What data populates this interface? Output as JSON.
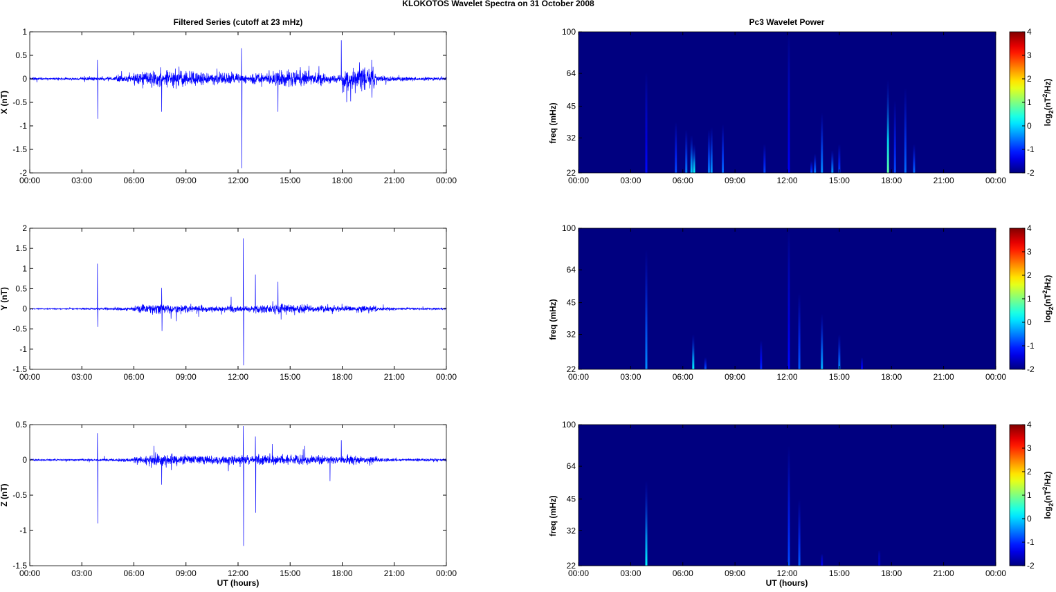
{
  "chart_data": {
    "type": "line",
    "title": "KLOKOTOS Wavelet Spectra on 31 October   2008",
    "left_title": "Filtered Series (cutoff at 23 mHz)",
    "right_title": "Pc3 Wavelet Power",
    "xlabel": "UT (hours)",
    "x_ticks": [
      "00:00",
      "03:00",
      "06:00",
      "09:00",
      "12:00",
      "15:00",
      "18:00",
      "21:00",
      "00:00"
    ],
    "xlim": [
      0,
      24
    ],
    "series_color": "#0000ff",
    "series": [
      {
        "name": "X",
        "ylabel": "X (nT)",
        "ylim": [
          -2,
          1
        ],
        "y_ticks": [
          "1",
          "0.5",
          "0",
          "-0.5",
          "-1",
          "-1.5",
          "-2"
        ],
        "activity": [
          0.02,
          0.02,
          0.02,
          0.03,
          0.03,
          0.06,
          0.14,
          0.15,
          0.13,
          0.12,
          0.1,
          0.09,
          0.09,
          0.1,
          0.14,
          0.14,
          0.1,
          0.08,
          0.18,
          0.17,
          0.05,
          0.04,
          0.03,
          0.03
        ],
        "spikes": [
          [
            3.9,
            0.4
          ],
          [
            3.92,
            -0.85
          ],
          [
            7.6,
            -0.7
          ],
          [
            12.2,
            0.65
          ],
          [
            12.22,
            -1.9
          ],
          [
            14.3,
            -0.7
          ],
          [
            17.95,
            0.82
          ],
          [
            18.0,
            -0.3
          ],
          [
            19.0,
            0.35
          ],
          [
            19.7,
            0.4
          ],
          [
            19.72,
            -0.4
          ]
        ]
      },
      {
        "name": "Y",
        "ylabel": "Y (nT)",
        "ylim": [
          -1.5,
          2
        ],
        "y_ticks": [
          "2",
          "1.5",
          "1",
          "0.5",
          "0",
          "-0.5",
          "-1",
          "-1.5"
        ],
        "activity": [
          0.01,
          0.01,
          0.01,
          0.015,
          0.02,
          0.04,
          0.08,
          0.09,
          0.08,
          0.07,
          0.06,
          0.06,
          0.06,
          0.08,
          0.1,
          0.09,
          0.06,
          0.05,
          0.05,
          0.06,
          0.03,
          0.02,
          0.02,
          0.02
        ],
        "spikes": [
          [
            3.9,
            1.12
          ],
          [
            3.92,
            -0.45
          ],
          [
            7.6,
            0.52
          ],
          [
            7.62,
            -0.55
          ],
          [
            12.3,
            1.75
          ],
          [
            12.32,
            -1.4
          ],
          [
            13.0,
            0.85
          ],
          [
            14.3,
            0.67
          ],
          [
            11.6,
            0.3
          ]
        ]
      },
      {
        "name": "Z",
        "ylabel": "Z (nT)",
        "ylim": [
          -1.5,
          0.5
        ],
        "y_ticks": [
          "0.5",
          "0",
          "-0.5",
          "-1",
          "-1.5"
        ],
        "activity": [
          0.01,
          0.01,
          0.01,
          0.01,
          0.015,
          0.02,
          0.05,
          0.06,
          0.06,
          0.05,
          0.05,
          0.05,
          0.05,
          0.06,
          0.06,
          0.06,
          0.05,
          0.04,
          0.05,
          0.04,
          0.02,
          0.015,
          0.015,
          0.015
        ],
        "spikes": [
          [
            3.9,
            0.38
          ],
          [
            3.92,
            -0.9
          ],
          [
            7.6,
            -0.35
          ],
          [
            12.3,
            0.48
          ],
          [
            12.32,
            -1.22
          ],
          [
            13.0,
            0.33
          ],
          [
            13.02,
            -0.75
          ],
          [
            17.95,
            0.28
          ],
          [
            17.3,
            -0.3
          ]
        ]
      }
    ],
    "spectra": {
      "type": "heatmap",
      "ylabel": "freq (mHz)",
      "y_scale": "log",
      "ylim": [
        22,
        100
      ],
      "y_ticks": [
        "100",
        "64",
        "45",
        "32",
        "22"
      ],
      "colorbar": {
        "range": [
          -2,
          4
        ],
        "ticks": [
          "4",
          "3",
          "2",
          "1",
          "0",
          "-1",
          "-2"
        ],
        "label_parts": [
          "log",
          "2",
          "(nT",
          "2",
          "/Hz)"
        ]
      },
      "panels": [
        {
          "name": "X",
          "streaks": [
            [
              3.9,
              65,
              -1.2
            ],
            [
              5.6,
              38,
              -0.8
            ],
            [
              6.2,
              35,
              -0.5
            ],
            [
              6.5,
              33,
              0
            ],
            [
              6.65,
              30,
              0.3
            ],
            [
              7.5,
              35,
              -0.5
            ],
            [
              7.65,
              36,
              -0.3
            ],
            [
              8.3,
              37,
              -0.6
            ],
            [
              10.7,
              30,
              -0.8
            ],
            [
              12.1,
              100,
              -1.3
            ],
            [
              13.4,
              25,
              -0.8
            ],
            [
              13.6,
              27,
              -0.5
            ],
            [
              14.0,
              42,
              -0.4
            ],
            [
              14.6,
              28,
              -0.3
            ],
            [
              15.0,
              30,
              -0.8
            ],
            [
              17.8,
              60,
              0.8
            ],
            [
              18.2,
              48,
              -0.8
            ],
            [
              18.8,
              55,
              -0.6
            ],
            [
              19.3,
              30,
              -0.6
            ]
          ]
        },
        {
          "name": "Y",
          "streaks": [
            [
              3.9,
              80,
              -0.4
            ],
            [
              6.6,
              32,
              0.2
            ],
            [
              7.3,
              25,
              -0.7
            ],
            [
              10.5,
              30,
              -1
            ],
            [
              12.1,
              100,
              -1.2
            ],
            [
              12.7,
              50,
              -0.7
            ],
            [
              14.0,
              40,
              -0.2
            ],
            [
              15.0,
              32,
              -0.4
            ],
            [
              16.3,
              25,
              -1.2
            ]
          ]
        },
        {
          "name": "Z",
          "streaks": [
            [
              3.9,
              55,
              0.2
            ],
            [
              12.1,
              80,
              -0.8
            ],
            [
              12.7,
              45,
              -0.7
            ],
            [
              14.0,
              25,
              -1.3
            ],
            [
              17.3,
              26,
              -1.5
            ]
          ]
        }
      ]
    }
  }
}
